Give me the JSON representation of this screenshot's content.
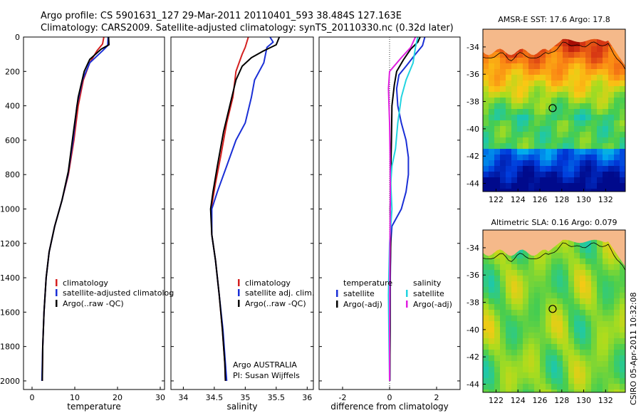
{
  "header": {
    "line1": "Argo profile: CS 5901631_127 29-Mar-2011 20110401_593 38.484S 127.163E",
    "line2": "Climatology: CARS2009. Satellite-adjusted climatology: synTS_20110330.nc (0.32d later)"
  },
  "credit": "CSIRO 05-Apr-2011 10:32:08",
  "chart_data": [
    {
      "id": "temperature",
      "type": "line",
      "xlabel": "temperature",
      "xlim": [
        -2,
        31
      ],
      "xticks": [
        0,
        10,
        20,
        30
      ],
      "ylim": [
        2050,
        0
      ],
      "yticks": [
        0,
        200,
        400,
        600,
        800,
        1000,
        1200,
        1400,
        1600,
        1800,
        2000
      ],
      "legend": {
        "position": "lower-right",
        "entries": [
          {
            "label": "climatology",
            "color": "#d42020"
          },
          {
            "label": "satellite-adjusted climatolog",
            "color": "#1a2fd6"
          },
          {
            "label": "Argo(..raw -QC)",
            "color": "#000000"
          }
        ]
      },
      "series": [
        {
          "color": "#d42020",
          "points": [
            [
              16.8,
              0
            ],
            [
              16.5,
              40
            ],
            [
              15.2,
              80
            ],
            [
              13.5,
              150
            ],
            [
              12.0,
              250
            ],
            [
              10.8,
              400
            ],
            [
              9.8,
              600
            ],
            [
              8.5,
              800
            ],
            [
              7.0,
              950
            ],
            [
              5.3,
              1100
            ],
            [
              4.0,
              1250
            ],
            [
              3.3,
              1400
            ],
            [
              2.8,
              1600
            ],
            [
              2.5,
              1800
            ],
            [
              2.4,
              2000
            ]
          ]
        },
        {
          "color": "#1a2fd6",
          "points": [
            [
              17.8,
              0
            ],
            [
              17.7,
              50
            ],
            [
              16.5,
              80
            ],
            [
              13.5,
              150
            ],
            [
              11.8,
              250
            ],
            [
              10.5,
              400
            ],
            [
              9.6,
              600
            ],
            [
              8.4,
              800
            ],
            [
              7.0,
              950
            ],
            [
              5.3,
              1100
            ],
            [
              4.0,
              1250
            ],
            [
              3.3,
              1400
            ],
            [
              2.8,
              1600
            ],
            [
              2.5,
              1800
            ],
            [
              2.3,
              2000
            ]
          ]
        },
        {
          "color": "#000000",
          "points": [
            [
              17.9,
              0
            ],
            [
              18.0,
              45
            ],
            [
              16.2,
              70
            ],
            [
              13.5,
              130
            ],
            [
              12.2,
              200
            ],
            [
              10.8,
              350
            ],
            [
              9.7,
              550
            ],
            [
              8.5,
              780
            ],
            [
              7.0,
              950
            ],
            [
              5.3,
              1100
            ],
            [
              4.0,
              1250
            ],
            [
              3.3,
              1400
            ],
            [
              2.8,
              1600
            ],
            [
              2.5,
              1800
            ],
            [
              2.4,
              2000
            ]
          ]
        }
      ]
    },
    {
      "id": "salinity",
      "type": "line",
      "xlabel": "salinity",
      "xlim": [
        33.8,
        36.1
      ],
      "xticks": [
        34,
        34.5,
        35,
        35.5,
        36
      ],
      "ylim": [
        2050,
        0
      ],
      "yticks": [
        0,
        200,
        400,
        600,
        800,
        1000,
        1200,
        1400,
        1600,
        1800,
        2000
      ],
      "legend": {
        "position": "lower-right",
        "entries": [
          {
            "label": "climatology",
            "color": "#d42020"
          },
          {
            "label": "satellite adj. clim.",
            "color": "#1a2fd6"
          },
          {
            "label": "Argo(..raw -QC)",
            "color": "#000000"
          }
        ]
      },
      "annotation": [
        "Argo AUSTRALIA",
        "PI: Susan Wijffels"
      ],
      "series": [
        {
          "color": "#d42020",
          "points": [
            [
              35.05,
              0
            ],
            [
              35.0,
              60
            ],
            [
              34.95,
              100
            ],
            [
              34.85,
              200
            ],
            [
              34.8,
              350
            ],
            [
              34.7,
              500
            ],
            [
              34.6,
              700
            ],
            [
              34.52,
              850
            ],
            [
              34.45,
              1000
            ],
            [
              34.46,
              1150
            ],
            [
              34.52,
              1300
            ],
            [
              34.58,
              1500
            ],
            [
              34.63,
              1700
            ],
            [
              34.67,
              1900
            ],
            [
              34.68,
              2000
            ]
          ]
        },
        {
          "color": "#1a2fd6",
          "points": [
            [
              35.4,
              0
            ],
            [
              35.45,
              30
            ],
            [
              35.35,
              60
            ],
            [
              35.3,
              150
            ],
            [
              35.15,
              250
            ],
            [
              35.1,
              350
            ],
            [
              35.0,
              500
            ],
            [
              34.85,
              600
            ],
            [
              34.7,
              750
            ],
            [
              34.55,
              900
            ],
            [
              34.46,
              1000
            ],
            [
              34.46,
              1150
            ],
            [
              34.52,
              1300
            ],
            [
              34.58,
              1500
            ],
            [
              34.64,
              1700
            ],
            [
              34.68,
              1900
            ],
            [
              34.7,
              2000
            ]
          ]
        },
        {
          "color": "#000000",
          "points": [
            [
              35.55,
              0
            ],
            [
              35.5,
              45
            ],
            [
              35.3,
              80
            ],
            [
              35.1,
              120
            ],
            [
              34.95,
              170
            ],
            [
              34.85,
              250
            ],
            [
              34.75,
              400
            ],
            [
              34.65,
              550
            ],
            [
              34.55,
              750
            ],
            [
              34.48,
              900
            ],
            [
              34.44,
              1000
            ],
            [
              34.46,
              1150
            ],
            [
              34.52,
              1300
            ],
            [
              34.58,
              1500
            ],
            [
              34.63,
              1700
            ],
            [
              34.67,
              1900
            ],
            [
              34.68,
              2000
            ]
          ]
        }
      ]
    },
    {
      "id": "difference",
      "type": "line",
      "xlabel": "difference from climatology",
      "xlim": [
        -3,
        3
      ],
      "xticks": [
        -2,
        0,
        2
      ],
      "ylim": [
        2050,
        0
      ],
      "yticks": [
        0,
        200,
        400,
        600,
        800,
        1000,
        1200,
        1400,
        1600,
        1800,
        2000
      ],
      "legend": {
        "position": "lower",
        "entries": [
          {
            "label": "temperature",
            "color": "",
            "heading": true
          },
          {
            "label": "satellite",
            "color": "#1a2fd6"
          },
          {
            "label": "Argo(-adj)",
            "color": "#000000"
          },
          {
            "label": "salinity",
            "color": "",
            "heading": true
          },
          {
            "label": "satellite",
            "color": "#22d4e0"
          },
          {
            "label": "Argo(-adj)",
            "color": "#e020e0"
          }
        ]
      },
      "series": [
        {
          "color": "#1a2fd6",
          "points": [
            [
              1.5,
              0
            ],
            [
              1.4,
              50
            ],
            [
              1.1,
              100
            ],
            [
              0.7,
              170
            ],
            [
              0.4,
              220
            ],
            [
              0.3,
              300
            ],
            [
              0.35,
              400
            ],
            [
              0.5,
              500
            ],
            [
              0.7,
              600
            ],
            [
              0.8,
              700
            ],
            [
              0.8,
              800
            ],
            [
              0.7,
              900
            ],
            [
              0.5,
              1000
            ],
            [
              0.1,
              1100
            ],
            [
              0.05,
              1200
            ],
            [
              0.03,
              1400
            ],
            [
              0.02,
              1700
            ],
            [
              0.01,
              2000
            ]
          ]
        },
        {
          "color": "#000000",
          "points": [
            [
              1.3,
              0
            ],
            [
              1.2,
              30
            ],
            [
              0.9,
              70
            ],
            [
              0.6,
              130
            ],
            [
              0.3,
              200
            ],
            [
              0.2,
              280
            ],
            [
              0.1,
              400
            ],
            [
              0.08,
              600
            ],
            [
              0.05,
              800
            ],
            [
              0.05,
              900
            ],
            [
              0.02,
              1000
            ],
            [
              0.05,
              1200
            ],
            [
              0.02,
              1400
            ],
            [
              0.02,
              1700
            ],
            [
              0.01,
              2000
            ]
          ]
        },
        {
          "color": "#22d4e0",
          "points": [
            [
              1.2,
              0
            ],
            [
              1.1,
              60
            ],
            [
              1.0,
              150
            ],
            [
              0.7,
              250
            ],
            [
              0.5,
              350
            ],
            [
              0.35,
              500
            ],
            [
              0.25,
              650
            ],
            [
              0.1,
              750
            ],
            [
              0.05,
              850
            ],
            [
              0.1,
              1000
            ],
            [
              0.0,
              1200
            ],
            [
              -0.05,
              1500
            ],
            [
              -0.02,
              1800
            ],
            [
              0.0,
              2000
            ]
          ]
        },
        {
          "color": "#e020e0",
          "points": [
            [
              1.1,
              0
            ],
            [
              0.9,
              60
            ],
            [
              0.5,
              120
            ],
            [
              0.0,
              200
            ],
            [
              -0.05,
              300
            ],
            [
              0.0,
              500
            ],
            [
              0.02,
              700
            ],
            [
              0.03,
              900
            ],
            [
              0.02,
              1100
            ],
            [
              0.01,
              1400
            ],
            [
              0.0,
              1700
            ],
            [
              0.0,
              2000
            ]
          ]
        }
      ]
    },
    {
      "id": "sst-map",
      "type": "heatmap",
      "title": "AMSR-E SST: 17.6 Argo: 17.8",
      "xticks": [
        122,
        124,
        126,
        128,
        130,
        132
      ],
      "yticks": [
        -34,
        -36,
        -38,
        -40,
        -42,
        -44
      ],
      "xlim": [
        120.8,
        133.8
      ],
      "ylim": [
        -44.6,
        -32.7
      ],
      "marker": {
        "lon": 127.163,
        "lat": -38.484
      }
    },
    {
      "id": "sla-map",
      "type": "heatmap",
      "title": "Altimetric SLA: 0.16 Argo: 0.079",
      "xticks": [
        122,
        124,
        126,
        128,
        130,
        132
      ],
      "yticks": [
        -34,
        -36,
        -38,
        -40,
        -42,
        -44
      ],
      "xlim": [
        120.8,
        133.8
      ],
      "ylim": [
        -44.6,
        -32.7
      ],
      "marker": {
        "lon": 127.163,
        "lat": -38.484
      }
    }
  ]
}
